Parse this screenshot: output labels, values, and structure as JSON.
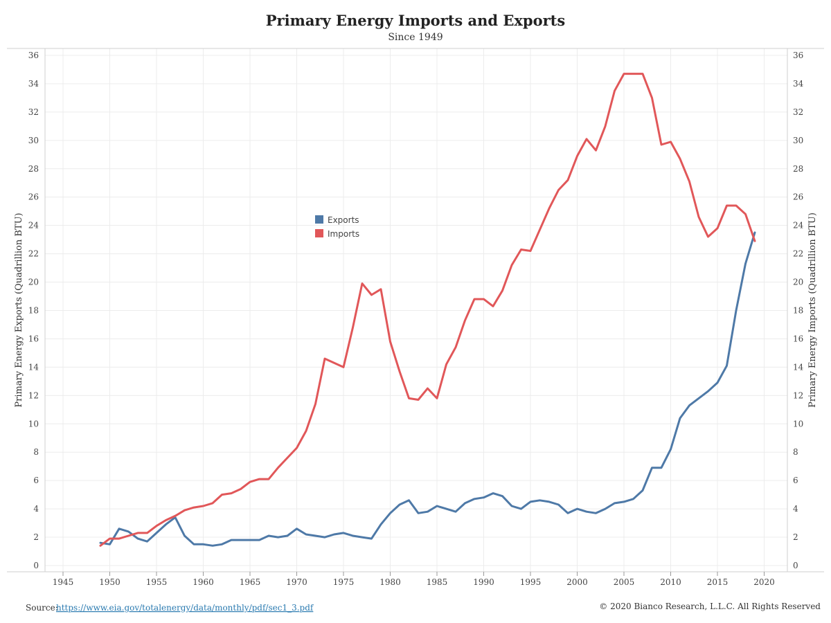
{
  "chart_data": {
    "type": "line",
    "title": "Primary Energy Imports and Exports",
    "subtitle": "Since 1949",
    "ylabel_left": "Primary Energy Exports (Quadrillion BTU)",
    "ylabel_right": "Primary Energy Imports (Quadrillion BTU)",
    "xlabel": "",
    "xlim": [
      1943,
      2023
    ],
    "ylim": [
      0,
      36
    ],
    "x_ticks": [
      1945,
      1950,
      1955,
      1960,
      1965,
      1970,
      1975,
      1980,
      1985,
      1990,
      1995,
      2000,
      2005,
      2010,
      2015,
      2020
    ],
    "y_ticks": [
      0,
      2,
      4,
      6,
      8,
      10,
      12,
      14,
      16,
      18,
      20,
      22,
      24,
      26,
      28,
      30,
      32,
      34,
      36
    ],
    "grid": true,
    "legend_position": "center-left",
    "series": [
      {
        "name": "Exports",
        "color": "#4e79a7",
        "x": [
          1949,
          1950,
          1951,
          1952,
          1953,
          1954,
          1955,
          1956,
          1957,
          1958,
          1959,
          1960,
          1961,
          1962,
          1963,
          1964,
          1965,
          1966,
          1967,
          1968,
          1969,
          1970,
          1971,
          1972,
          1973,
          1974,
          1975,
          1976,
          1977,
          1978,
          1979,
          1980,
          1981,
          1982,
          1983,
          1984,
          1985,
          1986,
          1987,
          1988,
          1989,
          1990,
          1991,
          1992,
          1993,
          1994,
          1995,
          1996,
          1997,
          1998,
          1999,
          2000,
          2001,
          2002,
          2003,
          2004,
          2005,
          2006,
          2007,
          2008,
          2009,
          2010,
          2011,
          2012,
          2013,
          2014,
          2015,
          2016,
          2017,
          2018,
          2019
        ],
        "values": [
          1.6,
          1.5,
          2.6,
          2.4,
          1.9,
          1.7,
          2.3,
          2.9,
          3.4,
          2.1,
          1.5,
          1.5,
          1.4,
          1.5,
          1.8,
          1.8,
          1.8,
          1.8,
          2.1,
          2.0,
          2.1,
          2.6,
          2.2,
          2.1,
          2.0,
          2.2,
          2.3,
          2.1,
          2.0,
          1.9,
          2.9,
          3.7,
          4.3,
          4.6,
          3.7,
          3.8,
          4.2,
          4.0,
          3.8,
          4.4,
          4.7,
          4.8,
          5.1,
          4.9,
          4.2,
          4.0,
          4.5,
          4.6,
          4.5,
          4.3,
          3.7,
          4.0,
          3.8,
          3.7,
          4.0,
          4.4,
          4.5,
          4.7,
          5.3,
          6.9,
          6.9,
          8.2,
          10.4,
          11.3,
          11.8,
          12.3,
          12.9,
          14.1,
          18.0,
          21.3,
          23.5
        ]
      },
      {
        "name": "Imports",
        "color": "#e15759",
        "x": [
          1949,
          1950,
          1951,
          1952,
          1953,
          1954,
          1955,
          1956,
          1957,
          1958,
          1959,
          1960,
          1961,
          1962,
          1963,
          1964,
          1965,
          1966,
          1967,
          1968,
          1969,
          1970,
          1971,
          1972,
          1973,
          1974,
          1975,
          1976,
          1977,
          1978,
          1979,
          1980,
          1981,
          1982,
          1983,
          1984,
          1985,
          1986,
          1987,
          1988,
          1989,
          1990,
          1991,
          1992,
          1993,
          1994,
          1995,
          1996,
          1997,
          1998,
          1999,
          2000,
          2001,
          2002,
          2003,
          2004,
          2005,
          2006,
          2007,
          2008,
          2009,
          2010,
          2011,
          2012,
          2013,
          2014,
          2015,
          2016,
          2017,
          2018,
          2019
        ],
        "values": [
          1.4,
          1.9,
          1.9,
          2.1,
          2.3,
          2.3,
          2.8,
          3.2,
          3.5,
          3.9,
          4.1,
          4.2,
          4.4,
          5.0,
          5.1,
          5.4,
          5.9,
          6.1,
          6.1,
          6.9,
          7.6,
          8.3,
          9.5,
          11.4,
          14.6,
          14.3,
          14.0,
          16.8,
          19.9,
          19.1,
          19.5,
          15.8,
          13.7,
          11.8,
          11.7,
          12.5,
          11.8,
          14.2,
          15.4,
          17.3,
          18.8,
          18.8,
          18.3,
          19.4,
          21.2,
          22.3,
          22.2,
          23.7,
          25.2,
          26.5,
          27.2,
          28.9,
          30.1,
          29.3,
          31.0,
          33.5,
          34.7,
          34.7,
          34.7,
          33.0,
          29.7,
          29.9,
          28.7,
          27.1,
          24.6,
          23.2,
          23.8,
          25.4,
          25.4,
          24.8,
          22.9
        ]
      }
    ]
  },
  "footer": {
    "source_label": "Source:",
    "source_link": "https://www.eia.gov/totalenergy/data/monthly/pdf/sec1_3.pdf",
    "copyright": "© 2020 Bianco Research, L.L.C. All Rights Reserved"
  }
}
